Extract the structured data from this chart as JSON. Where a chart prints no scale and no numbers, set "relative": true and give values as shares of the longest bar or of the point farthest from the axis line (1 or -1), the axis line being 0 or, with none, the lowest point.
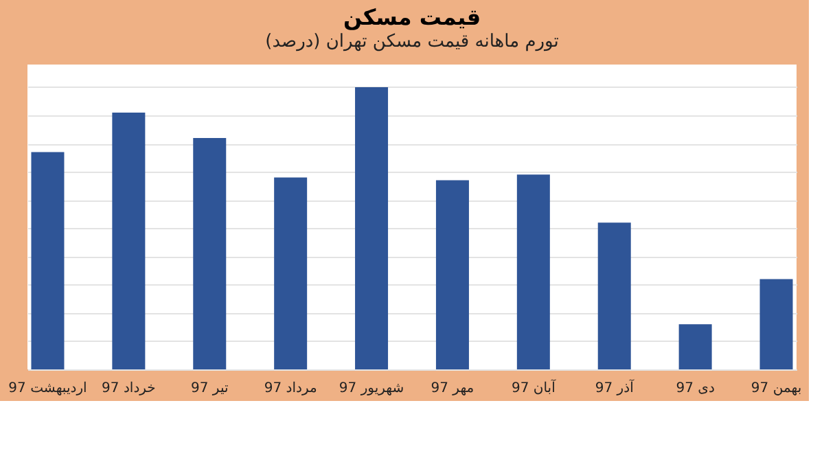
{
  "chart_data": {
    "type": "bar",
    "title": "قیمت مسکن",
    "subtitle": "تورم ماهانه قیمت مسکن تهران (درصد)",
    "categories": [
      "اردیبهشت 97",
      "خرداد 97",
      "تیر 97",
      "مرداد 97",
      "شهریور 97",
      "مهر 97",
      "آبان 97",
      "آذر 97",
      "دی 97",
      "بهمن 97"
    ],
    "values": [
      0.77,
      0.91,
      0.82,
      0.68,
      1,
      0.67,
      0.69,
      0.52,
      0.16,
      0.32
    ],
    "color": "#2f5597",
    "relative": true,
    "grid": "y"
  }
}
